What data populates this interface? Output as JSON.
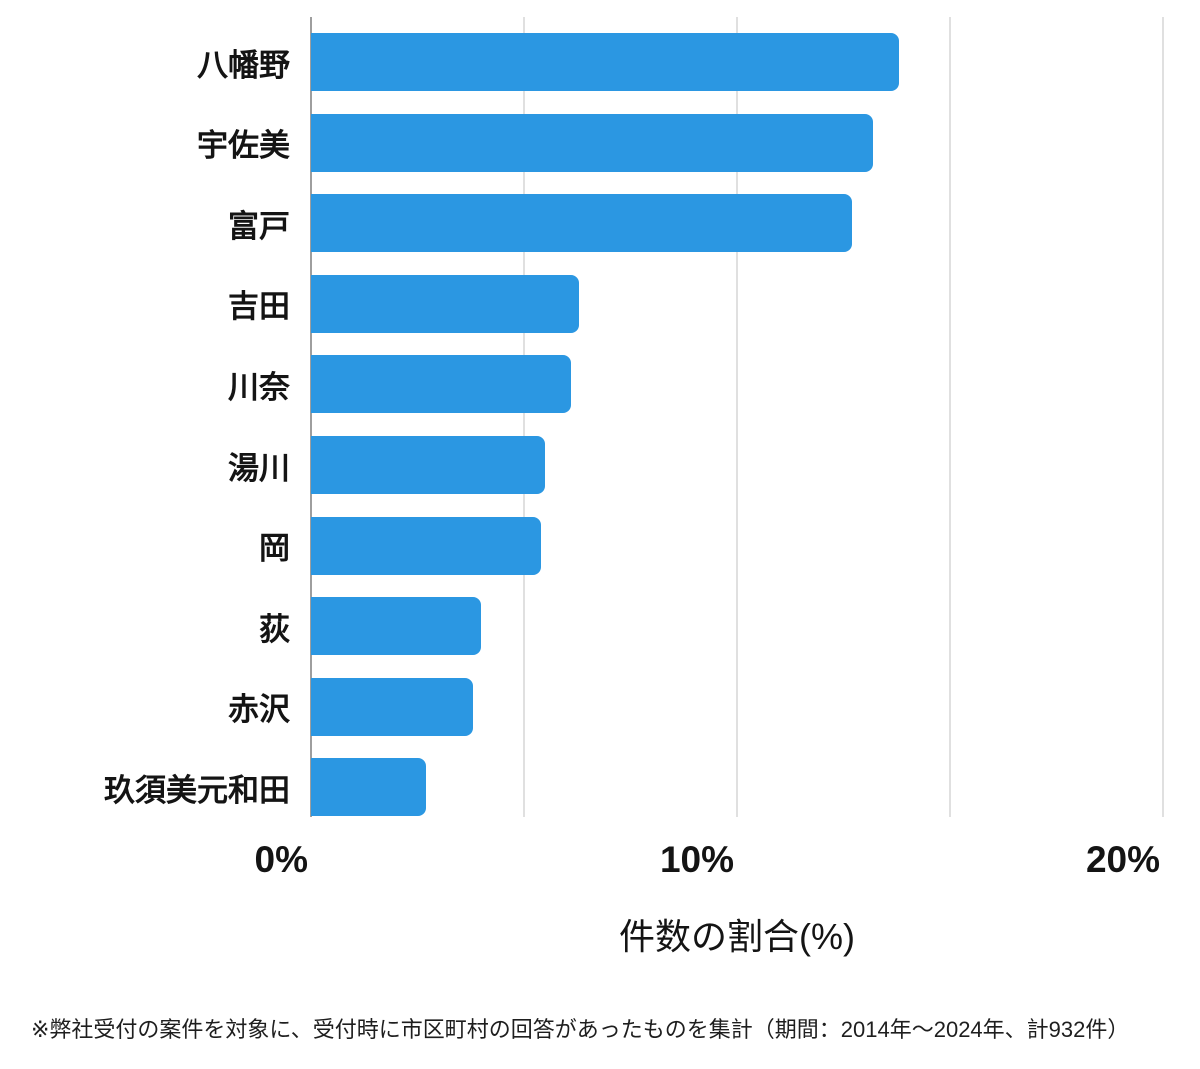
{
  "chart_data": {
    "type": "bar",
    "orientation": "horizontal",
    "categories": [
      "八幡野",
      "宇佐美",
      "富戸",
      "吉田",
      "川奈",
      "湯川",
      "岡",
      "荻",
      "赤沢",
      "玖須美元和田"
    ],
    "values": [
      13.8,
      13.2,
      12.7,
      6.3,
      6.1,
      5.5,
      5.4,
      4.0,
      3.8,
      2.7
    ],
    "title": "",
    "xlabel": "件数の割合(%)",
    "ylabel": "",
    "xlim": [
      0,
      20
    ],
    "x_ticks": [
      {
        "value": 0,
        "label": "0%"
      },
      {
        "value": 10,
        "label": "10%"
      },
      {
        "value": 20,
        "label": "20%"
      }
    ],
    "gridline_values": [
      5,
      10,
      15,
      20
    ],
    "grid": true,
    "legend": false
  },
  "footnote": "※弊社受付の案件を対象に、受付時に市区町村の回答があったものを集計（期間：2014年〜2024年、計932件）",
  "colors": {
    "bar": "#2b97e2",
    "gridline": "#e0e0e0",
    "axis_line": "#9e9e9e",
    "text": "#141414",
    "background": "#ffffff"
  }
}
